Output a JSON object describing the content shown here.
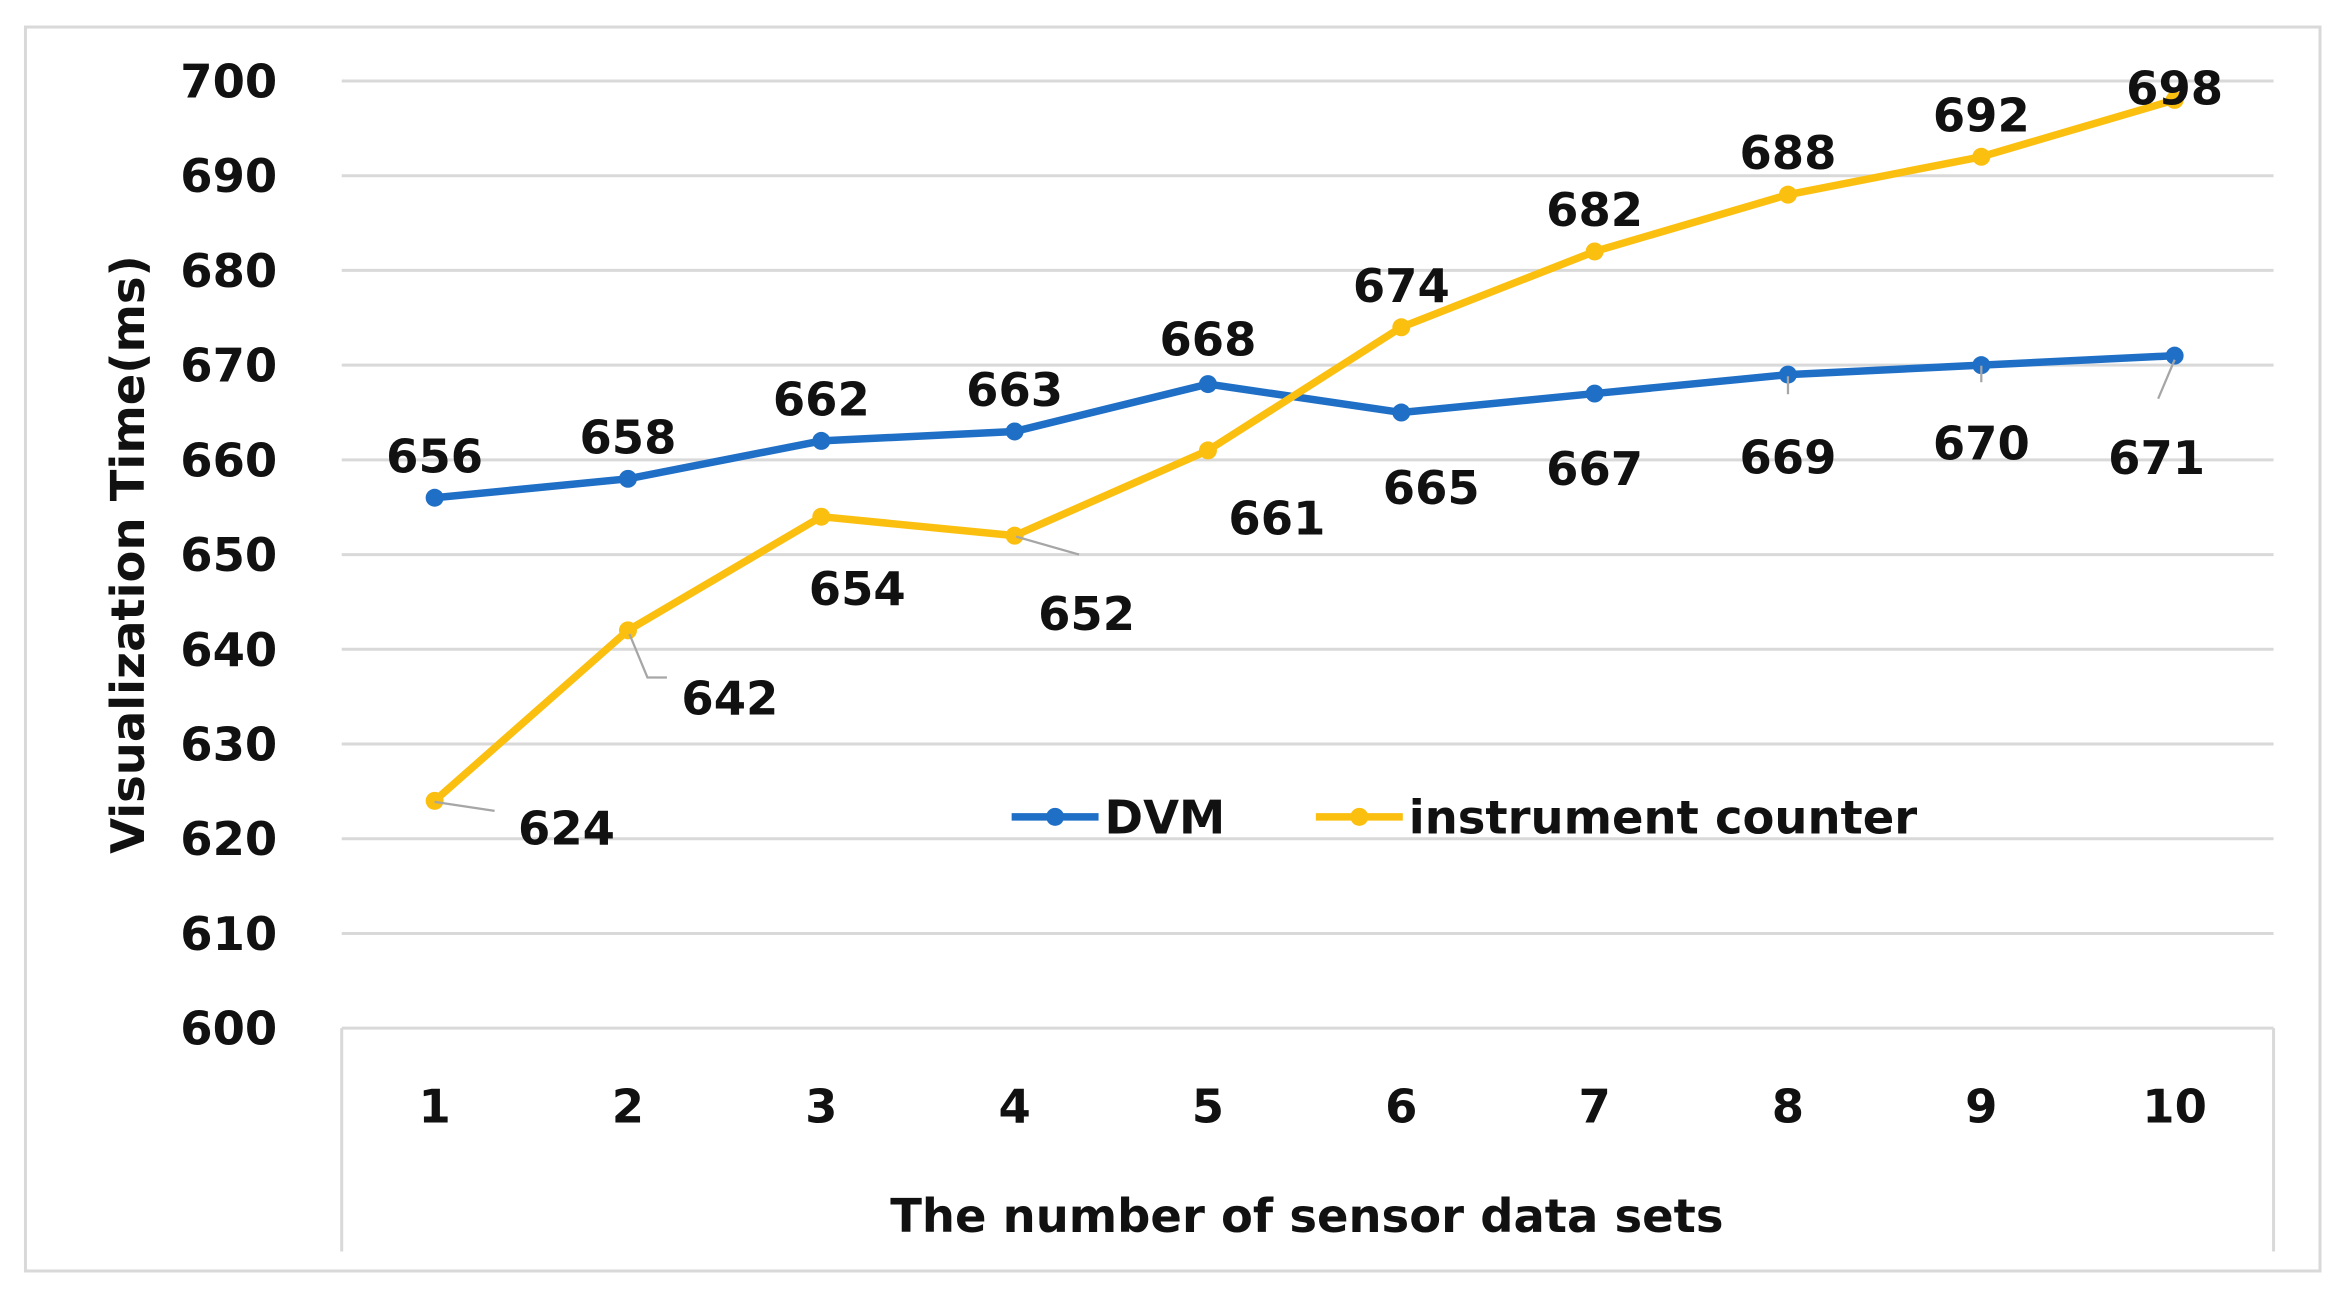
{
  "chart_data": {
    "type": "line",
    "title": "",
    "xlabel": "The number of sensor data sets",
    "ylabel": "Visualization Time(ms)",
    "categories": [
      "1",
      "2",
      "3",
      "4",
      "5",
      "6",
      "7",
      "8",
      "9",
      "10"
    ],
    "ylim": [
      600,
      700
    ],
    "yticks": [
      600,
      610,
      620,
      630,
      640,
      650,
      660,
      670,
      680,
      690,
      700
    ],
    "grid": true,
    "legend_placement": "center-bottom-inside",
    "series": [
      {
        "name": "DVM",
        "color": "#1f6fc6",
        "values": [
          656,
          658,
          662,
          663,
          668,
          665,
          667,
          669,
          670,
          671
        ]
      },
      {
        "name": "instrument counter",
        "color": "#fbbf10",
        "values": [
          624,
          642,
          654,
          652,
          661,
          674,
          682,
          688,
          692,
          698
        ]
      }
    ]
  }
}
